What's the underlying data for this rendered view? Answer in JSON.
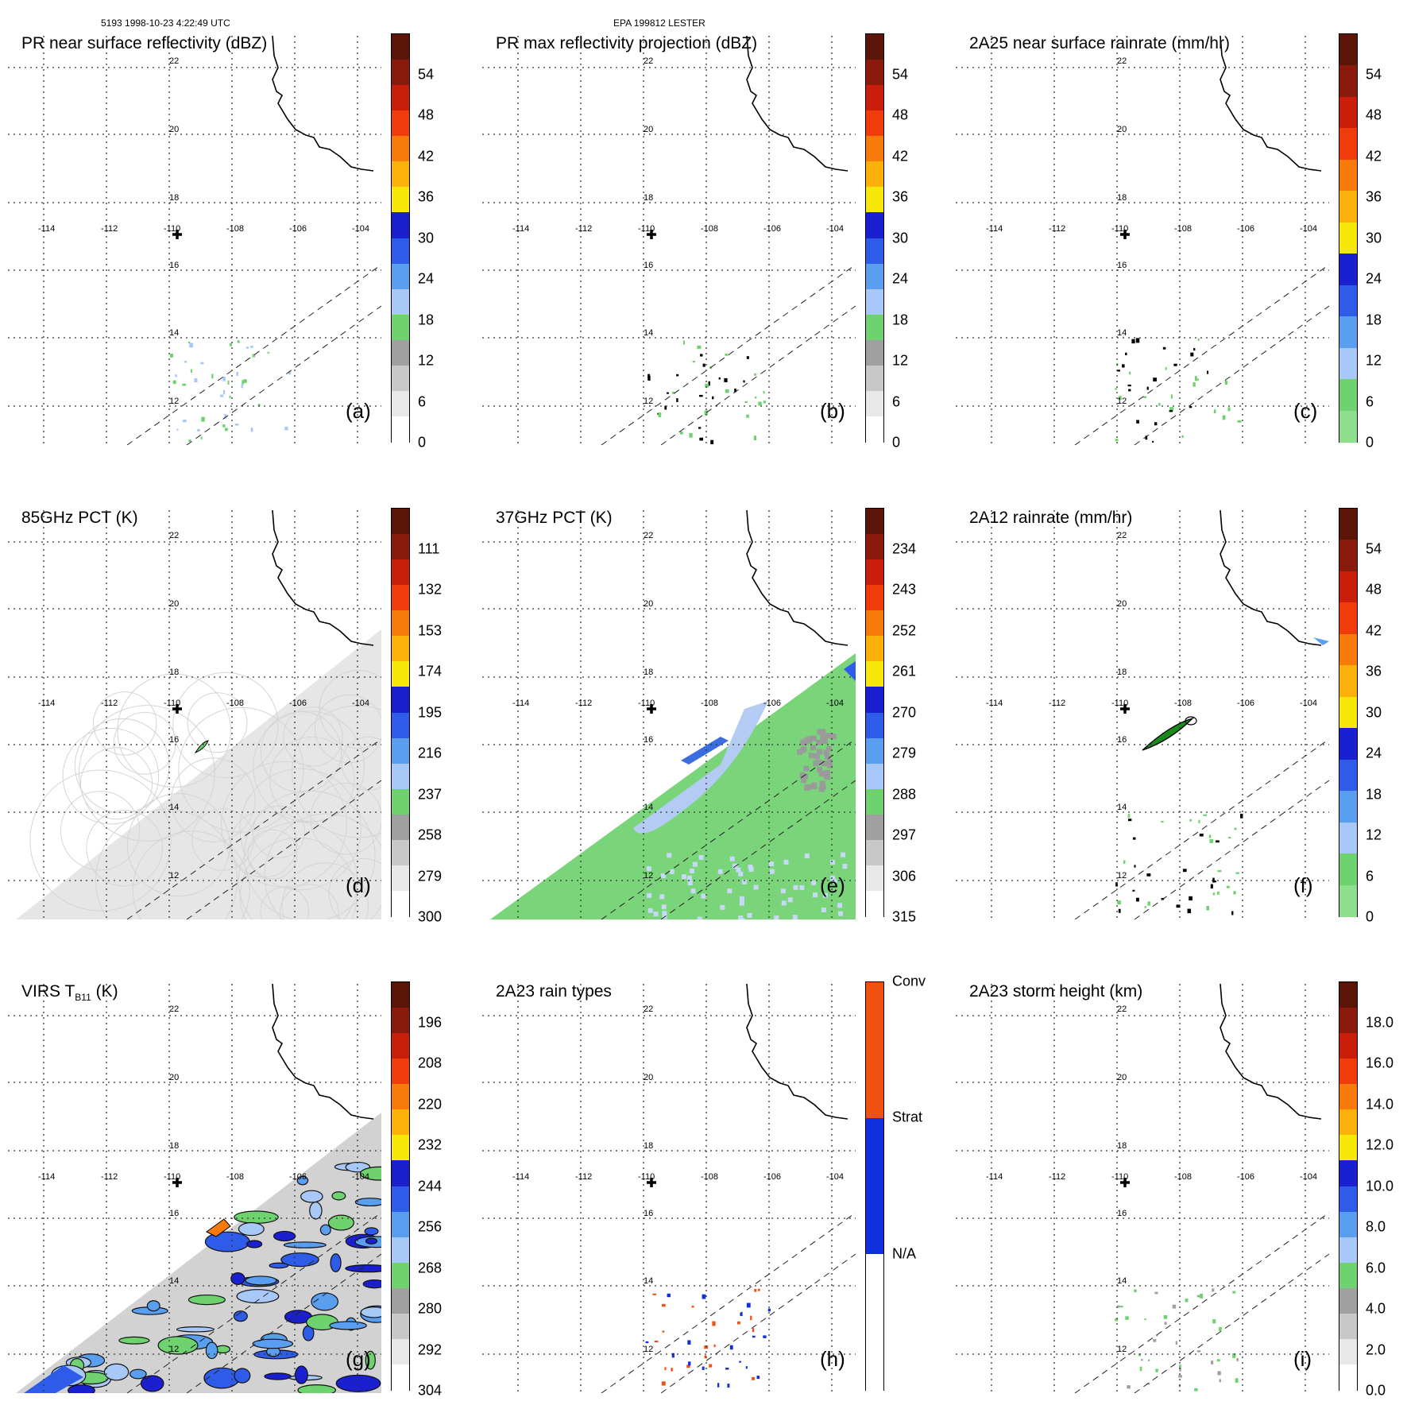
{
  "header": {
    "left": "5193 1998-10-23 4:22:49 UTC",
    "center": "EPA 199812 LESTER"
  },
  "map": {
    "lon_labels": [
      "-114",
      "-112",
      "-110",
      "-108",
      "-106",
      "-104"
    ],
    "lat_labels": [
      "22",
      "20",
      "18",
      "16",
      "14",
      "12"
    ]
  },
  "panels": [
    {
      "title": "PR near surface reflectivity (dBZ)",
      "label": "(a)",
      "ticks": [
        "54",
        "48",
        "42",
        "36",
        "30",
        "24",
        "18",
        "12",
        "6",
        "0"
      ],
      "colors": [
        "#5a1408",
        "#8a1a0c",
        "#c81e0a",
        "#f03c0a",
        "#f87a0a",
        "#fcb00a",
        "#f8e80a",
        "#1a20d0",
        "#2e5ce8",
        "#5a9ef0",
        "#a8c8f8",
        "#6ed26e",
        "#a0a0a0",
        "#c8c8c8",
        "#e8e8e8",
        "#ffffff"
      ]
    },
    {
      "title": "PR max reflectivity projection (dBZ)",
      "label": "(b)",
      "ticks": [
        "54",
        "48",
        "42",
        "36",
        "30",
        "24",
        "18",
        "12",
        "6",
        "0"
      ],
      "colors": [
        "#5a1408",
        "#8a1a0c",
        "#c81e0a",
        "#f03c0a",
        "#f87a0a",
        "#fcb00a",
        "#f8e80a",
        "#1a20d0",
        "#2e5ce8",
        "#5a9ef0",
        "#a8c8f8",
        "#6ed26e",
        "#a0a0a0",
        "#c8c8c8",
        "#e8e8e8",
        "#ffffff"
      ]
    },
    {
      "title": "2A25 near surface rainrate (mm/hr)",
      "label": "(c)",
      "ticks": [
        "54",
        "48",
        "42",
        "36",
        "30",
        "24",
        "18",
        "12",
        "6",
        "0"
      ],
      "colors": [
        "#5a1408",
        "#8a1a0c",
        "#c81e0a",
        "#f03c0a",
        "#f87a0a",
        "#fcb00a",
        "#f8e80a",
        "#1a20d0",
        "#2e5ce8",
        "#5a9ef0",
        "#a8c8f8",
        "#6ed26e",
        "#8ee08e"
      ]
    },
    {
      "title": "85GHz PCT (K)",
      "label": "(d)",
      "ticks": [
        "111",
        "132",
        "153",
        "174",
        "195",
        "216",
        "237",
        "258",
        "279",
        "300"
      ],
      "colors": [
        "#5a1408",
        "#8a1a0c",
        "#c81e0a",
        "#f03c0a",
        "#f87a0a",
        "#fcb00a",
        "#f8e80a",
        "#1a20d0",
        "#2e5ce8",
        "#5a9ef0",
        "#a8c8f8",
        "#6ed26e",
        "#a0a0a0",
        "#c8c8c8",
        "#e8e8e8",
        "#ffffff"
      ]
    },
    {
      "title": "37GHz PCT (K)",
      "label": "(e)",
      "ticks": [
        "234",
        "243",
        "252",
        "261",
        "270",
        "279",
        "288",
        "297",
        "306",
        "315"
      ],
      "colors": [
        "#5a1408",
        "#8a1a0c",
        "#c81e0a",
        "#f03c0a",
        "#f87a0a",
        "#fcb00a",
        "#f8e80a",
        "#1a20d0",
        "#2e5ce8",
        "#5a9ef0",
        "#a8c8f8",
        "#6ed26e",
        "#a0a0a0",
        "#c8c8c8",
        "#e8e8e8",
        "#ffffff"
      ]
    },
    {
      "title": "2A12 rainrate (mm/hr)",
      "label": "(f)",
      "ticks": [
        "54",
        "48",
        "42",
        "36",
        "30",
        "24",
        "18",
        "12",
        "6",
        "0"
      ],
      "colors": [
        "#5a1408",
        "#8a1a0c",
        "#c81e0a",
        "#f03c0a",
        "#f87a0a",
        "#fcb00a",
        "#f8e80a",
        "#1a20d0",
        "#2e5ce8",
        "#5a9ef0",
        "#a8c8f8",
        "#6ed26e",
        "#8ee08e"
      ]
    },
    {
      "title_main": "VIRS T",
      "title_sub": "B11",
      "title_tail": " (K)",
      "label": "(g)",
      "ticks": [
        "196",
        "208",
        "220",
        "232",
        "244",
        "256",
        "268",
        "280",
        "292",
        "304"
      ],
      "colors": [
        "#5a1408",
        "#8a1a0c",
        "#c81e0a",
        "#f03c0a",
        "#f87a0a",
        "#fcb00a",
        "#f8e80a",
        "#1a20d0",
        "#2e5ce8",
        "#5a9ef0",
        "#a8c8f8",
        "#6ed26e",
        "#a0a0a0",
        "#c8c8c8",
        "#e8e8e8",
        "#ffffff"
      ]
    },
    {
      "title": "2A23 rain types",
      "label": "(h)",
      "ticks": [
        "Conv",
        "Strat",
        "N/A"
      ],
      "colors": [
        "#f05010",
        "#1030e0",
        "#ffffff"
      ]
    },
    {
      "title": "2A23 storm height (km)",
      "label": "(i)",
      "ticks": [
        "18.0",
        "16.0",
        "14.0",
        "12.0",
        "10.0",
        "8.0",
        "6.0",
        "4.0",
        "2.0",
        "0.0"
      ],
      "colors": [
        "#5a1408",
        "#8a1a0c",
        "#c81e0a",
        "#f03c0a",
        "#f87a0a",
        "#fcb00a",
        "#f8e80a",
        "#1a20d0",
        "#2e5ce8",
        "#5a9ef0",
        "#a8c8f8",
        "#6ed26e",
        "#a0a0a0",
        "#c8c8c8",
        "#e8e8e8",
        "#ffffff"
      ]
    }
  ]
}
